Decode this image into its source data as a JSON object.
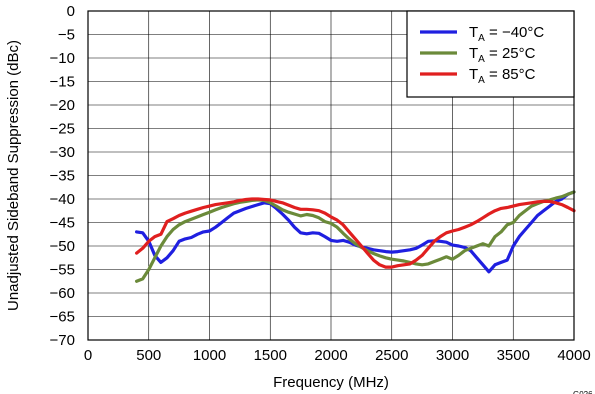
{
  "chart_data": {
    "type": "line",
    "xlabel": "Frequency (MHz)",
    "ylabel": "Unadjusted Sideband Suppression (dBc)",
    "xlim": [
      0,
      4000
    ],
    "ylim": [
      -70,
      0
    ],
    "x_ticks": [
      0,
      500,
      1000,
      1500,
      2000,
      2500,
      3000,
      3500,
      4000
    ],
    "y_ticks": [
      0,
      -5,
      -10,
      -15,
      -20,
      -25,
      -30,
      -35,
      -40,
      -45,
      -50,
      -55,
      -60,
      -65,
      -70
    ],
    "x_tick_labels": [
      "0",
      "500",
      "1000",
      "1500",
      "2000",
      "2500",
      "3000",
      "3500",
      "4000"
    ],
    "y_tick_labels": [
      "0",
      "−5",
      "−10",
      "−15",
      "−20",
      "−25",
      "−30",
      "−35",
      "−40",
      "−45",
      "−50",
      "−55",
      "−60",
      "−65",
      "−70"
    ],
    "grid": true,
    "legend_position": "top-right",
    "figure_id": "G026",
    "series": [
      {
        "name": "T_A = −40°C",
        "legend_main": "T",
        "legend_sub": "A",
        "legend_rest": " = −40°C",
        "color": "#1f1fe0",
        "x": [
          400,
          450,
          500,
          550,
          600,
          650,
          700,
          750,
          800,
          850,
          900,
          950,
          1000,
          1050,
          1100,
          1150,
          1200,
          1250,
          1300,
          1350,
          1400,
          1450,
          1500,
          1550,
          1600,
          1650,
          1700,
          1750,
          1800,
          1850,
          1900,
          1950,
          2000,
          2050,
          2100,
          2150,
          2200,
          2250,
          2300,
          2350,
          2400,
          2450,
          2500,
          2550,
          2600,
          2650,
          2700,
          2750,
          2800,
          2850,
          2900,
          2950,
          3000,
          3050,
          3100,
          3150,
          3200,
          3250,
          3300,
          3350,
          3400,
          3450,
          3500,
          3550,
          3600,
          3650,
          3700,
          3750,
          3800,
          3850,
          3900,
          3950,
          4000
        ],
        "y": [
          -47.0,
          -47.2,
          -49.0,
          -52.0,
          -53.5,
          -52.5,
          -51.0,
          -49.0,
          -48.5,
          -48.2,
          -47.5,
          -47.0,
          -46.8,
          -46.0,
          -45.0,
          -44.0,
          -43.0,
          -42.5,
          -42.0,
          -41.6,
          -41.2,
          -40.8,
          -41.0,
          -42.0,
          -43.2,
          -44.5,
          -46.0,
          -47.2,
          -47.4,
          -47.2,
          -47.3,
          -48.0,
          -48.8,
          -49.0,
          -48.8,
          -49.2,
          -49.8,
          -50.2,
          -50.5,
          -50.8,
          -51.0,
          -51.2,
          -51.3,
          -51.2,
          -51.0,
          -50.8,
          -50.5,
          -49.8,
          -49.0,
          -48.9,
          -49.0,
          -49.2,
          -49.8,
          -50.0,
          -50.3,
          -51.0,
          -52.5,
          -54.0,
          -55.5,
          -54.0,
          -53.5,
          -53.0,
          -50.0,
          -48.0,
          -46.5,
          -45.0,
          -43.5,
          -42.5,
          -41.5,
          -40.5,
          -40.0,
          -39.0,
          -38.5
        ]
      },
      {
        "name": "T_A = 25°C",
        "legend_main": "T",
        "legend_sub": "A",
        "legend_rest": " = 25°C",
        "color": "#6b8a3a",
        "x": [
          400,
          450,
          500,
          550,
          600,
          650,
          700,
          750,
          800,
          850,
          900,
          950,
          1000,
          1050,
          1100,
          1150,
          1200,
          1250,
          1300,
          1350,
          1400,
          1450,
          1500,
          1550,
          1600,
          1650,
          1700,
          1750,
          1800,
          1850,
          1900,
          1950,
          2000,
          2050,
          2100,
          2150,
          2200,
          2250,
          2300,
          2350,
          2400,
          2450,
          2500,
          2550,
          2600,
          2650,
          2700,
          2750,
          2800,
          2850,
          2900,
          2950,
          3000,
          3050,
          3100,
          3150,
          3200,
          3250,
          3300,
          3350,
          3400,
          3450,
          3500,
          3550,
          3600,
          3650,
          3700,
          3750,
          3800,
          3850,
          3900,
          3950,
          4000
        ],
        "y": [
          -57.5,
          -57.0,
          -55.0,
          -52.5,
          -50.0,
          -48.0,
          -46.5,
          -45.5,
          -44.8,
          -44.3,
          -43.8,
          -43.3,
          -42.8,
          -42.3,
          -41.8,
          -41.4,
          -41.0,
          -40.7,
          -40.5,
          -40.3,
          -40.2,
          -40.3,
          -40.8,
          -41.5,
          -42.3,
          -42.8,
          -43.2,
          -43.6,
          -43.3,
          -43.5,
          -44.0,
          -44.8,
          -45.2,
          -46.0,
          -47.3,
          -48.5,
          -49.5,
          -50.3,
          -51.0,
          -51.6,
          -52.1,
          -52.5,
          -52.8,
          -53.0,
          -53.2,
          -53.5,
          -53.8,
          -54.0,
          -53.8,
          -53.3,
          -52.8,
          -52.3,
          -52.8,
          -52.0,
          -51.0,
          -50.5,
          -50.0,
          -49.5,
          -50.0,
          -48.0,
          -47.0,
          -45.5,
          -45.0,
          -43.5,
          -42.5,
          -41.5,
          -41.0,
          -40.5,
          -40.2,
          -39.8,
          -39.5,
          -39.0,
          -38.5
        ]
      },
      {
        "name": "T_A = 85°C",
        "legend_main": "T",
        "legend_sub": "A",
        "legend_rest": " = 85°C",
        "color": "#e01f1f",
        "x": [
          400,
          450,
          500,
          550,
          600,
          650,
          700,
          750,
          800,
          850,
          900,
          950,
          1000,
          1050,
          1100,
          1150,
          1200,
          1250,
          1300,
          1350,
          1400,
          1450,
          1500,
          1550,
          1600,
          1650,
          1700,
          1750,
          1800,
          1850,
          1900,
          1950,
          2000,
          2050,
          2100,
          2150,
          2200,
          2250,
          2300,
          2350,
          2400,
          2450,
          2500,
          2550,
          2600,
          2650,
          2700,
          2750,
          2800,
          2850,
          2900,
          2950,
          3000,
          3050,
          3100,
          3150,
          3200,
          3250,
          3300,
          3350,
          3400,
          3450,
          3500,
          3550,
          3600,
          3650,
          3700,
          3750,
          3800,
          3850,
          3900,
          3950,
          4000
        ],
        "y": [
          -51.5,
          -50.5,
          -49.0,
          -48.0,
          -47.5,
          -44.8,
          -44.2,
          -43.5,
          -43.0,
          -42.6,
          -42.2,
          -41.8,
          -41.5,
          -41.2,
          -41.0,
          -40.8,
          -40.6,
          -40.3,
          -40.1,
          -40.0,
          -40.0,
          -40.1,
          -40.2,
          -40.5,
          -40.8,
          -41.3,
          -41.8,
          -42.2,
          -42.2,
          -42.3,
          -42.5,
          -43.0,
          -43.8,
          -44.5,
          -45.5,
          -47.0,
          -48.5,
          -50.0,
          -51.5,
          -53.0,
          -54.0,
          -54.5,
          -54.5,
          -54.2,
          -54.0,
          -53.8,
          -53.0,
          -52.0,
          -50.5,
          -49.0,
          -48.0,
          -47.2,
          -46.8,
          -46.5,
          -46.0,
          -45.5,
          -44.8,
          -44.0,
          -43.2,
          -42.5,
          -42.0,
          -41.8,
          -41.5,
          -41.2,
          -41.0,
          -40.8,
          -40.6,
          -40.5,
          -40.5,
          -40.8,
          -41.2,
          -41.8,
          -42.5
        ]
      }
    ]
  }
}
